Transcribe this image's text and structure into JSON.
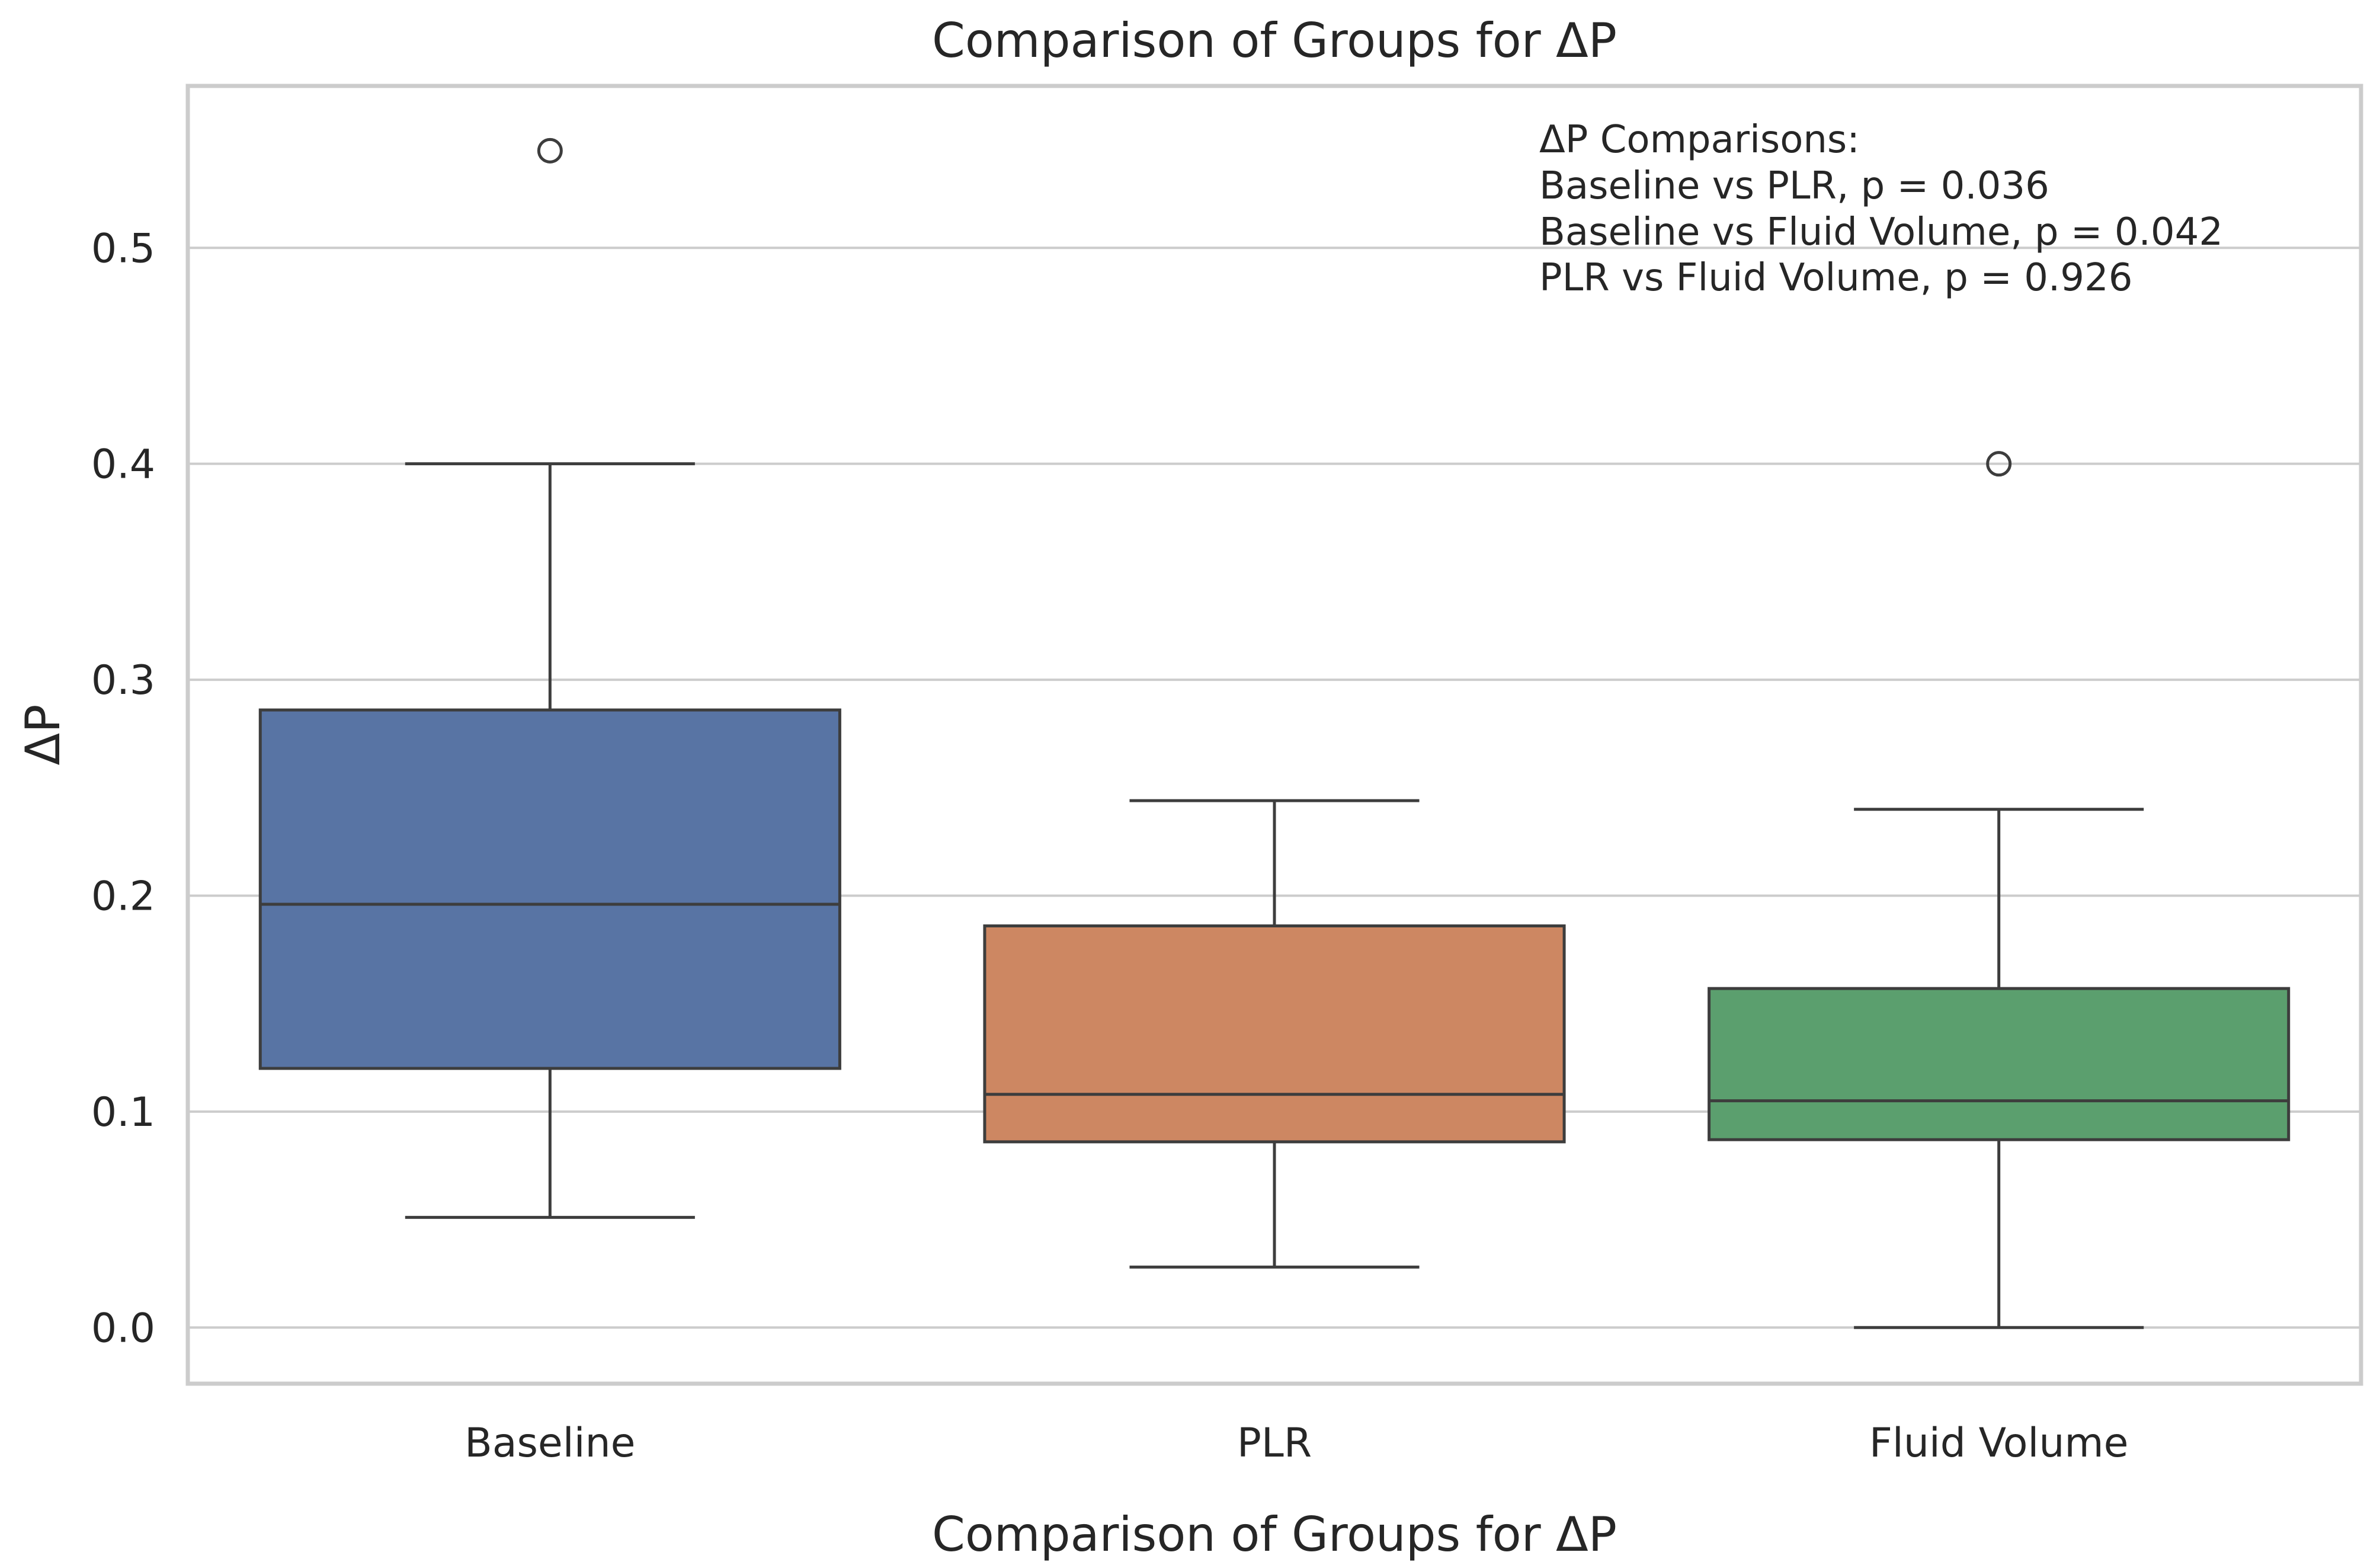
{
  "chart_data": {
    "type": "boxplot",
    "title": "Comparison of Groups for ΔP",
    "xlabel": "Comparison of Groups for ΔP",
    "ylabel": "ΔP",
    "ylim": [
      -0.026,
      0.575
    ],
    "yticks": [
      0.0,
      0.1,
      0.2,
      0.3,
      0.4,
      0.5
    ],
    "ytick_labels": [
      "0.0",
      "0.1",
      "0.2",
      "0.3",
      "0.4",
      "0.5"
    ],
    "grid": "horizontal",
    "categories": [
      "Baseline",
      "PLR",
      "Fluid Volume"
    ],
    "series": [
      {
        "name": "Baseline",
        "color": "#5874a4",
        "whisker_low": 0.051,
        "q1": 0.12,
        "median": 0.196,
        "q3": 0.286,
        "whisker_high": 0.4,
        "outliers": [
          0.545
        ]
      },
      {
        "name": "PLR",
        "color": "#cd8762",
        "whisker_low": 0.028,
        "q1": 0.086,
        "median": 0.108,
        "q3": 0.186,
        "whisker_high": 0.244,
        "outliers": []
      },
      {
        "name": "Fluid Volume",
        "color": "#5b9f6e",
        "whisker_low": 0.0,
        "q1": 0.087,
        "median": 0.105,
        "q3": 0.157,
        "whisker_high": 0.24,
        "outliers": [
          0.4
        ]
      }
    ],
    "annotation": {
      "lines": [
        "ΔP Comparisons:",
        "Baseline vs PLR, p = 0.036",
        "Baseline vs Fluid Volume, p = 0.042",
        "PLR vs Fluid Volume, p = 0.926"
      ],
      "placement": "top-right"
    }
  }
}
